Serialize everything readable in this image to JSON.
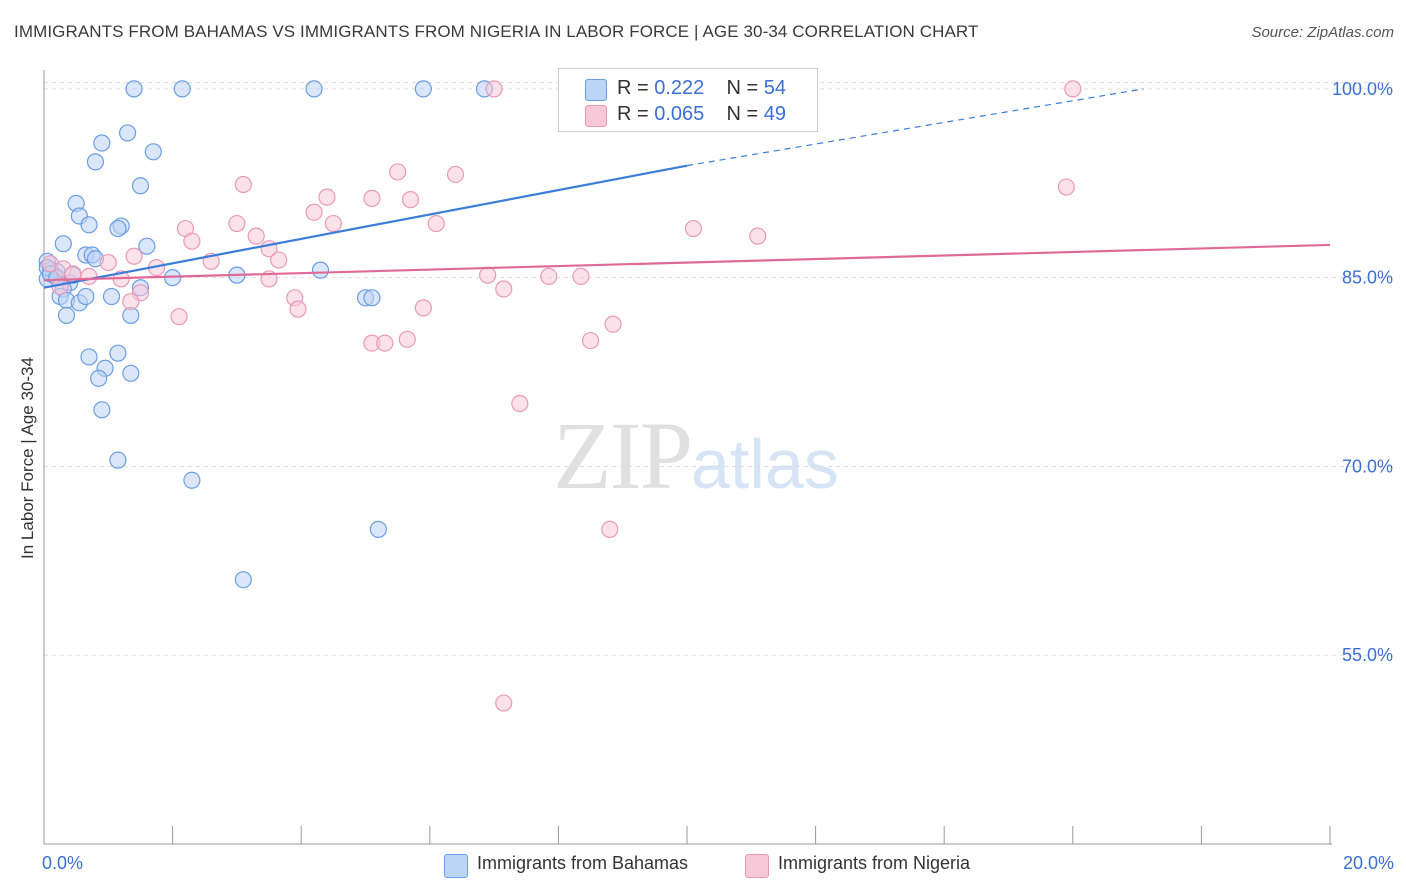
{
  "title": "IMMIGRANTS FROM BAHAMAS VS IMMIGRANTS FROM NIGERIA IN LABOR FORCE | AGE 30-34 CORRELATION CHART",
  "source": "Source: ZipAtlas.com",
  "watermark": {
    "zip": "ZIP",
    "atlas": "atlas"
  },
  "legend": {
    "bahamas": {
      "r_label": "R = ",
      "r_value": "0.222",
      "n_label": "N = ",
      "n_value": "54"
    },
    "nigeria": {
      "r_label": "R = ",
      "r_value": "0.065",
      "n_label": "N = ",
      "n_value": "49"
    }
  },
  "colors": {
    "bahamas_fill": "#bcd4f6",
    "bahamas_stroke": "#6b9de0",
    "bahamas_line": "#3b7dd8",
    "nigeria_fill": "#f8c8d8",
    "nigeria_stroke": "#e99ab6",
    "nigeria_line": "#e06a96",
    "axis_text": "#3b6fd4",
    "grid": "#dddddd"
  },
  "chart_data": {
    "type": "scatter",
    "title": "IMMIGRANTS FROM BAHAMAS VS IMMIGRANTS FROM NIGERIA IN LABOR FORCE | AGE 30-34 CORRELATION CHART",
    "xlabel": "",
    "ylabel": "In Labor Force | Age 30-34",
    "xlim": [
      0,
      20
    ],
    "ylim": [
      40,
      101.5
    ],
    "x_tick_labels": [
      {
        "value": 0,
        "label": "0.0%"
      },
      {
        "value": 20,
        "label": "20.0%"
      }
    ],
    "y_tick_labels": [
      {
        "value": 100,
        "label": "100.0%"
      },
      {
        "value": 85,
        "label": "85.0%"
      },
      {
        "value": 70,
        "label": "70.0%"
      },
      {
        "value": 55,
        "label": "55.0%"
      }
    ],
    "series": [
      {
        "name": "Immigrants from Bahamas",
        "points": [
          [
            1.4,
            100
          ],
          [
            2.15,
            100
          ],
          [
            4.2,
            100
          ],
          [
            5.9,
            100
          ],
          [
            6.85,
            100
          ],
          [
            1.3,
            96.5
          ],
          [
            0.9,
            95.7
          ],
          [
            1.7,
            95
          ],
          [
            0.8,
            94.2
          ],
          [
            1.5,
            92.3
          ],
          [
            0.5,
            90.9
          ],
          [
            0.55,
            89.9
          ],
          [
            0.7,
            89.2
          ],
          [
            1.2,
            89.1
          ],
          [
            1.15,
            88.9
          ],
          [
            0.3,
            87.7
          ],
          [
            1.6,
            87.5
          ],
          [
            0.05,
            86.3
          ],
          [
            0.1,
            85.6
          ],
          [
            0.65,
            86.8
          ],
          [
            0.75,
            86.8
          ],
          [
            0.8,
            86.5
          ],
          [
            0.2,
            85.5
          ],
          [
            0.15,
            85.2
          ],
          [
            0.05,
            84.9
          ],
          [
            0.4,
            84.6
          ],
          [
            0.3,
            84.1
          ],
          [
            3.0,
            85.2
          ],
          [
            4.3,
            85.6
          ],
          [
            2.0,
            85.0
          ],
          [
            1.5,
            84.2
          ],
          [
            0.25,
            83.5
          ],
          [
            0.35,
            83.2
          ],
          [
            0.55,
            83.0
          ],
          [
            0.65,
            83.5
          ],
          [
            1.05,
            83.5
          ],
          [
            5.0,
            83.4
          ],
          [
            5.1,
            83.4
          ],
          [
            0.35,
            82.0
          ],
          [
            1.35,
            82.0
          ],
          [
            0.7,
            78.7
          ],
          [
            1.15,
            79.0
          ],
          [
            0.95,
            77.8
          ],
          [
            1.35,
            77.4
          ],
          [
            0.85,
            77.0
          ],
          [
            0.9,
            74.5
          ],
          [
            1.15,
            70.5
          ],
          [
            2.3,
            68.9
          ],
          [
            5.2,
            65.0
          ],
          [
            3.1,
            61.0
          ],
          [
            0.05,
            85.8
          ],
          [
            0.1,
            85.3
          ],
          [
            0.2,
            85.0
          ],
          [
            0.45,
            85.2
          ]
        ],
        "trend": {
          "x0": 0,
          "y0": 84.2,
          "x1": 10.0,
          "y1": 93.9,
          "x_dash_end": 17.1,
          "y_dash_end": 100.0
        }
      },
      {
        "name": "Immigrants from Nigeria",
        "points": [
          [
            7.0,
            100
          ],
          [
            16.0,
            100
          ],
          [
            3.1,
            92.4
          ],
          [
            4.4,
            91.4
          ],
          [
            5.5,
            93.4
          ],
          [
            6.4,
            93.2
          ],
          [
            15.9,
            92.2
          ],
          [
            5.1,
            91.3
          ],
          [
            5.7,
            91.2
          ],
          [
            4.2,
            90.2
          ],
          [
            3.0,
            89.3
          ],
          [
            2.2,
            88.9
          ],
          [
            4.5,
            89.3
          ],
          [
            6.1,
            89.3
          ],
          [
            10.1,
            88.9
          ],
          [
            11.1,
            88.3
          ],
          [
            3.3,
            88.3
          ],
          [
            2.3,
            87.9
          ],
          [
            3.5,
            87.3
          ],
          [
            1.4,
            86.7
          ],
          [
            2.6,
            86.3
          ],
          [
            3.65,
            86.4
          ],
          [
            1.0,
            86.2
          ],
          [
            1.75,
            85.8
          ],
          [
            1.2,
            84.9
          ],
          [
            3.5,
            84.9
          ],
          [
            6.9,
            85.2
          ],
          [
            7.85,
            85.1
          ],
          [
            8.35,
            85.1
          ],
          [
            7.15,
            84.1
          ],
          [
            0.1,
            86.1
          ],
          [
            0.3,
            85.7
          ],
          [
            0.45,
            85.3
          ],
          [
            0.7,
            85.1
          ],
          [
            0.25,
            84.3
          ],
          [
            1.5,
            83.8
          ],
          [
            1.35,
            83.1
          ],
          [
            3.9,
            83.4
          ],
          [
            3.95,
            82.5
          ],
          [
            5.9,
            82.6
          ],
          [
            2.1,
            81.9
          ],
          [
            8.85,
            81.3
          ],
          [
            5.1,
            79.8
          ],
          [
            5.65,
            80.1
          ],
          [
            5.3,
            79.8
          ],
          [
            8.5,
            80.0
          ],
          [
            7.4,
            75.0
          ],
          [
            8.8,
            65.0
          ],
          [
            7.15,
            51.2
          ]
        ],
        "trend": {
          "x0": 0,
          "y0": 84.8,
          "x1": 20,
          "y1": 87.6
        }
      }
    ]
  },
  "bottom_legend": {
    "bahamas": "Immigrants from Bahamas",
    "nigeria": "Immigrants from Nigeria"
  }
}
